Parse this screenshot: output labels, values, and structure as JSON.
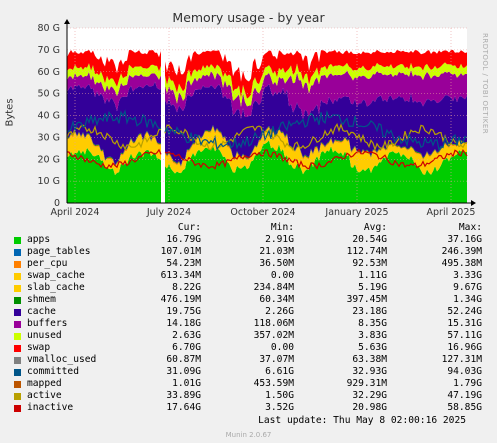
{
  "title": "Memory usage - by year",
  "rrdtool_label": "RRDTOOL / TOBI OETIKER",
  "munin_version": "Munin 2.0.67",
  "last_update": "Last update: Thu May  8 02:00:16 2025",
  "legend_headers": {
    "cur": "Cur:",
    "min": "Min:",
    "avg": "Avg:",
    "max": "Max:"
  },
  "chart_data": {
    "type": "area",
    "title": "Memory usage - by year",
    "ylabel": "Bytes",
    "ylim": [
      0,
      80
    ],
    "y_ticks": [
      "0",
      "10 G",
      "20 G",
      "30 G",
      "40 G",
      "50 G",
      "60 G",
      "70 G",
      "80 G"
    ],
    "x_ticks": [
      "April 2024",
      "July 2024",
      "October 2024",
      "January 2025",
      "April 2025"
    ],
    "grid": true,
    "stacked": true,
    "series": [
      {
        "name": "apps",
        "color": "#00cc00",
        "cur": "16.79G",
        "min": "2.91G",
        "avg": "20.54G",
        "max": "37.16G"
      },
      {
        "name": "page_tables",
        "color": "#0066b3",
        "cur": "107.01M",
        "min": "21.03M",
        "avg": "112.74M",
        "max": "246.39M"
      },
      {
        "name": "per_cpu",
        "color": "#ff8000",
        "cur": "54.23M",
        "min": "36.50M",
        "avg": "92.53M",
        "max": "495.38M"
      },
      {
        "name": "swap_cache",
        "color": "#ffcc00",
        "cur": "613.34M",
        "min": "0.00",
        "avg": "1.11G",
        "max": "3.33G"
      },
      {
        "name": "slab_cache",
        "color": "#ffcc00",
        "cur": "8.22G",
        "min": "234.84M",
        "avg": "5.19G",
        "max": "9.67G"
      },
      {
        "name": "shmem",
        "color": "#008f00",
        "cur": "476.19M",
        "min": "60.34M",
        "avg": "397.45M",
        "max": "1.34G"
      },
      {
        "name": "cache",
        "color": "#330099",
        "cur": "19.75G",
        "min": "2.26G",
        "avg": "23.18G",
        "max": "52.24G"
      },
      {
        "name": "buffers",
        "color": "#990099",
        "cur": "14.18G",
        "min": "118.06M",
        "avg": "8.35G",
        "max": "15.31G"
      },
      {
        "name": "unused",
        "color": "#ccff00",
        "cur": "2.63G",
        "min": "357.02M",
        "avg": "3.83G",
        "max": "57.11G"
      },
      {
        "name": "swap",
        "color": "#ff0000",
        "cur": "6.70G",
        "min": "0.00",
        "avg": "5.63G",
        "max": "16.96G"
      },
      {
        "name": "vmalloc_used",
        "color": "#808080",
        "cur": "60.87M",
        "min": "37.07M",
        "avg": "63.38M",
        "max": "127.31M"
      },
      {
        "name": "committed",
        "color": "#005588",
        "cur": "31.09G",
        "min": "6.61G",
        "avg": "32.93G",
        "max": "94.03G"
      },
      {
        "name": "mapped",
        "color": "#bb5500",
        "cur": "1.01G",
        "min": "453.59M",
        "avg": "929.31M",
        "max": "1.79G"
      },
      {
        "name": "active",
        "color": "#b8a000",
        "cur": "33.89G",
        "min": "1.50G",
        "avg": "32.29G",
        "max": "47.19G"
      },
      {
        "name": "inactive",
        "color": "#cc0000",
        "cur": "17.64G",
        "min": "3.52G",
        "avg": "20.98G",
        "max": "58.85G"
      }
    ]
  }
}
